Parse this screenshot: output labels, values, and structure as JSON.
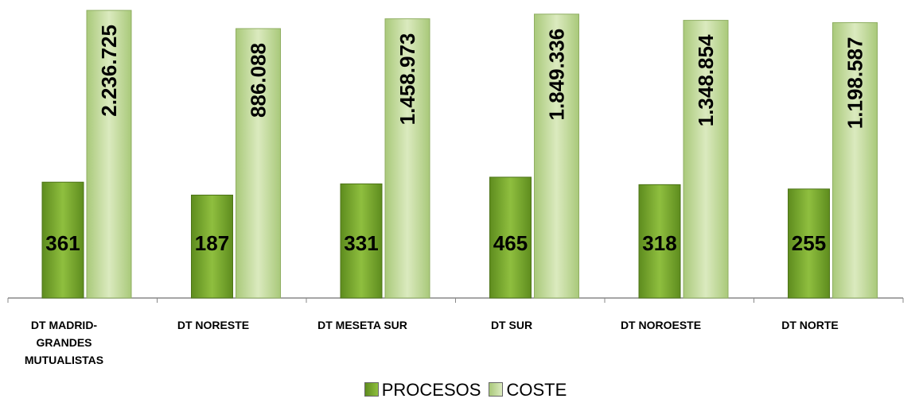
{
  "chart_data": {
    "type": "bar",
    "categories": [
      "DT MADRID-GRANDES MUTUALISTAS",
      "DT NORESTE",
      "DT MESETA SUR",
      "DT SUR",
      "DT NOROESTE",
      "DT NORTE"
    ],
    "series": [
      {
        "name": "PROCESOS",
        "color": "#7aa72f",
        "values": [
          361,
          187,
          331,
          465,
          318,
          255
        ]
      },
      {
        "name": "COSTE",
        "color": "#c5dc9f",
        "values": [
          2236725,
          886088,
          1458973,
          1849336,
          1348854,
          1198587
        ],
        "value_labels": [
          "2.236.725",
          "886.088",
          "1.458.973",
          "1.849.336",
          "1.348.854",
          "1.198.587"
        ]
      }
    ],
    "ylim": [
      1,
      10000000
    ],
    "log_scale": true,
    "grid": false,
    "legend": "bottom"
  }
}
